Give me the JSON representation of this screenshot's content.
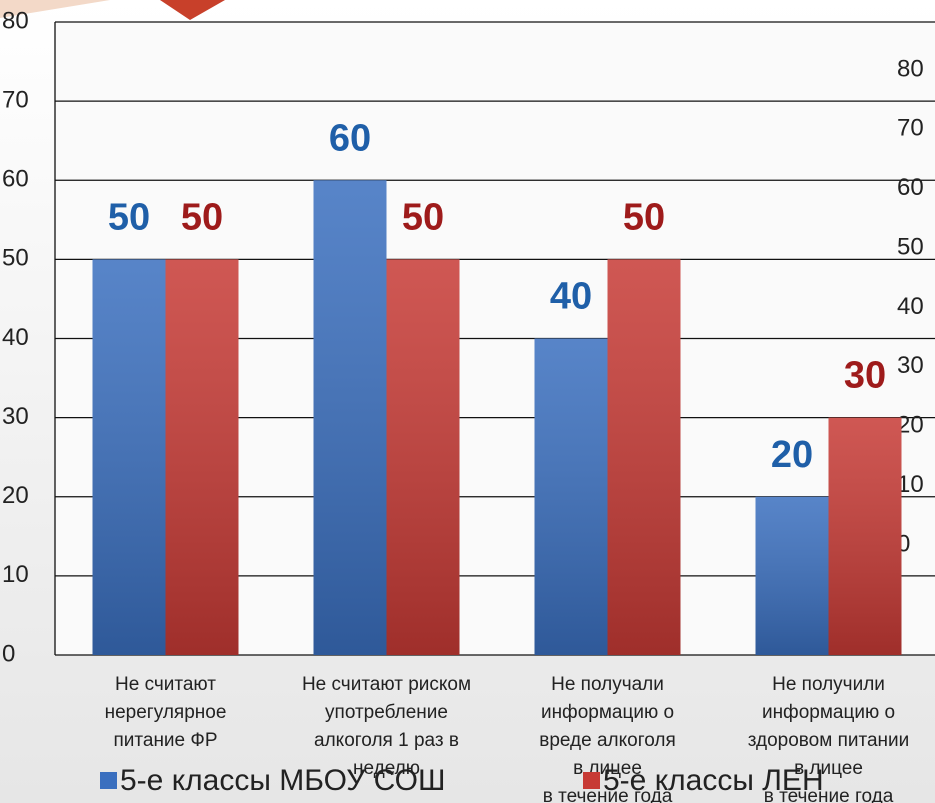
{
  "chart_data": {
    "type": "bar",
    "categories": [
      [
        "Не считают",
        "нерегулярное",
        "питание ФР"
      ],
      [
        "Не считают риском",
        "употребление",
        "алкоголя 1 раз в",
        "неделю"
      ],
      [
        "Не получали",
        "информацию о",
        "вреде алкоголя",
        "в лицее",
        "в течение года"
      ],
      [
        "Не получили",
        "информацию о",
        "здоровом питании",
        "в лицее",
        "в течение года"
      ]
    ],
    "series": [
      {
        "name": "5-е  классы МБОУ СОШ",
        "color": "#3a6fbf",
        "label_color": "#1f5fa8",
        "values": [
          50,
          60,
          40,
          20
        ]
      },
      {
        "name": "5-е  классы ЛЕН",
        "color": "#c73a35",
        "label_color": "#9e1b1b",
        "values": [
          50,
          50,
          50,
          30
        ]
      }
    ],
    "ylim": [
      0,
      80
    ],
    "yticks": [
      0,
      10,
      20,
      30,
      40,
      50,
      60,
      70,
      80
    ],
    "y2lim": [
      0,
      80
    ],
    "y2ticks": [
      0,
      10,
      20,
      30,
      40,
      50,
      60,
      70,
      80
    ],
    "grid": true
  }
}
